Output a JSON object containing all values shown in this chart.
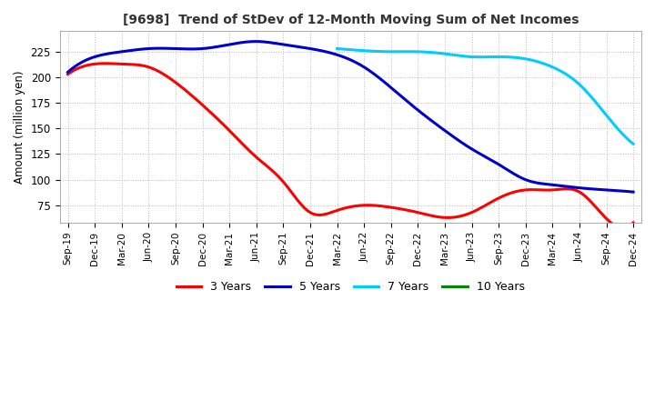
{
  "title": "[9698]  Trend of StDev of 12-Month Moving Sum of Net Incomes",
  "ylabel": "Amount (million yen)",
  "background_color": "#ffffff",
  "grid_color": "#bbbbbb",
  "x_labels": [
    "Sep-19",
    "Dec-19",
    "Mar-20",
    "Jun-20",
    "Sep-20",
    "Dec-20",
    "Mar-21",
    "Jun-21",
    "Sep-21",
    "Dec-21",
    "Mar-22",
    "Jun-22",
    "Sep-22",
    "Dec-22",
    "Mar-23",
    "Jun-23",
    "Sep-23",
    "Dec-23",
    "Mar-24",
    "Jun-24",
    "Sep-24",
    "Dec-24"
  ],
  "ylim": [
    58,
    245
  ],
  "yticks": [
    75,
    100,
    125,
    150,
    175,
    200,
    225
  ],
  "series": {
    "3yr": {
      "color": "#ff0000",
      "label": "3 Years",
      "values": [
        203,
        213,
        213,
        210,
        195,
        173,
        148,
        122,
        98,
        68,
        70,
        75,
        73,
        68,
        63,
        68,
        82,
        90,
        90,
        88,
        62,
        58
      ]
    },
    "5yr": {
      "color": "#0000cc",
      "label": "5 Years",
      "values": [
        205,
        220,
        225,
        228,
        228,
        228,
        232,
        235,
        232,
        228,
        222,
        210,
        190,
        168,
        148,
        130,
        115,
        100,
        95,
        92,
        90,
        88
      ]
    },
    "7yr": {
      "color": "#00ccff",
      "label": "7 Years",
      "values": [
        null,
        null,
        null,
        null,
        null,
        null,
        null,
        null,
        null,
        null,
        228,
        226,
        225,
        225,
        223,
        220,
        220,
        218,
        210,
        193,
        163,
        135
      ]
    },
    "10yr": {
      "color": "#008800",
      "label": "10 Years",
      "values": [
        null,
        null,
        null,
        null,
        null,
        null,
        null,
        null,
        null,
        null,
        null,
        null,
        null,
        null,
        null,
        null,
        null,
        null,
        null,
        null,
        null,
        null
      ]
    }
  },
  "legend_colors": [
    "#ff0000",
    "#0000cc",
    "#00ccff",
    "#008800"
  ],
  "legend_labels": [
    "3 Years",
    "5 Years",
    "7 Years",
    "10 Years"
  ]
}
